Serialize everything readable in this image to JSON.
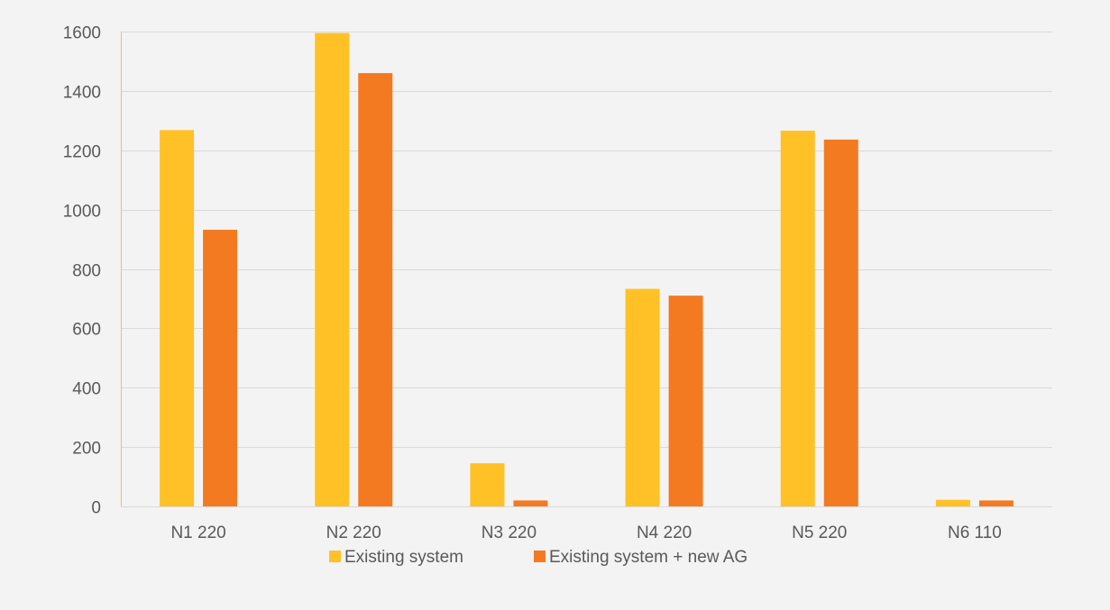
{
  "chart_data": {
    "type": "bar",
    "title": "",
    "xlabel": "",
    "ylabel": "",
    "categories": [
      "N1 220",
      "N2 220",
      "N3 220",
      "N4 220",
      "N5 220",
      "N6 110"
    ],
    "series": [
      {
        "name": "Existing system",
        "color": "#ffc125",
        "values": [
          1268,
          1595,
          145,
          733,
          1266,
          22
        ]
      },
      {
        "name": "Existing system + new AG",
        "color": "#f37a21",
        "values": [
          932,
          1460,
          20,
          710,
          1236,
          20
        ]
      }
    ],
    "ylim": [
      0,
      1600
    ],
    "yticks": [
      0,
      200,
      400,
      600,
      800,
      1000,
      1200,
      1400,
      1600
    ],
    "grid": true,
    "legend_position": "bottom"
  }
}
